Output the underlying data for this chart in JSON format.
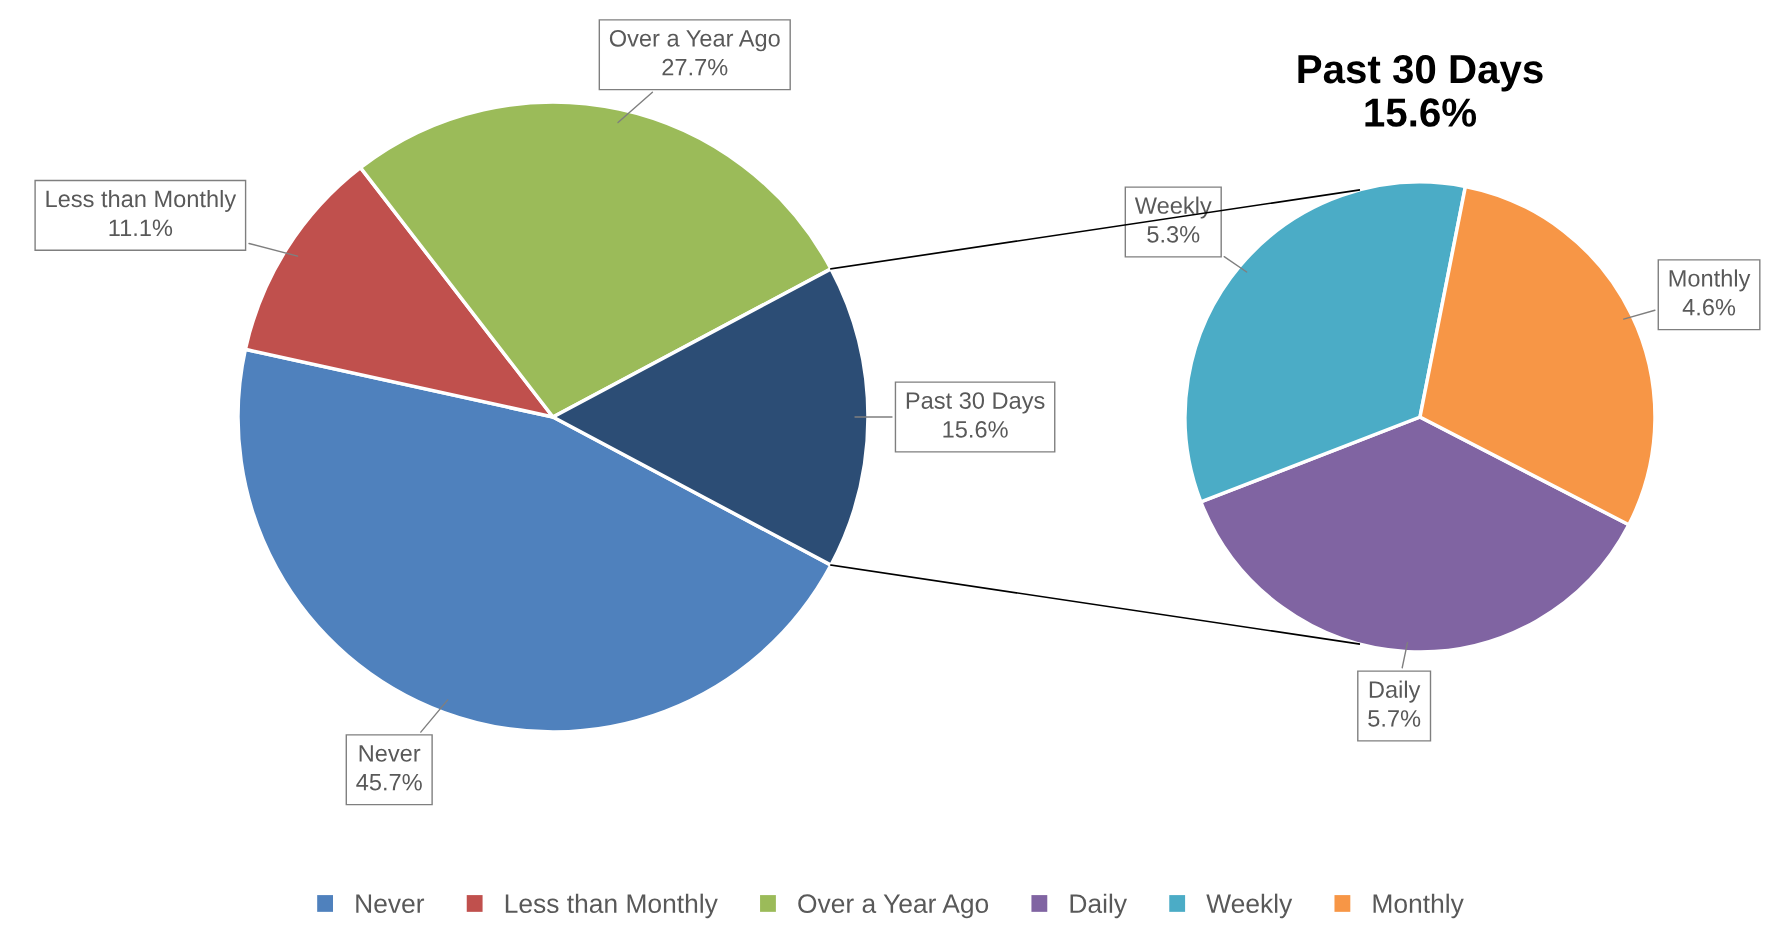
{
  "chart_data": [
    {
      "type": "pie",
      "categories": [
        "Never",
        "Less than Monthly",
        "Over a Year Ago",
        "Past 30 Days"
      ],
      "values": [
        45.7,
        11.1,
        27.7,
        15.6
      ],
      "colors": [
        "#4f81bd",
        "#c0504d",
        "#9bbb59",
        "#2c4d75"
      ],
      "value_labels": [
        "45.7%",
        "11.1%",
        "27.7%",
        "15.6%"
      ],
      "legend": "bottom"
    },
    {
      "type": "pie",
      "title": "Past 30 Days\n15.6%",
      "categories": [
        "Daily",
        "Weekly",
        "Monthly"
      ],
      "values": [
        5.7,
        5.3,
        4.6
      ],
      "colors": [
        "#8064a2",
        "#4bacc6",
        "#f79646"
      ],
      "value_labels": [
        "5.7%",
        "5.3%",
        "4.6%"
      ],
      "legend": "bottom"
    }
  ]
}
